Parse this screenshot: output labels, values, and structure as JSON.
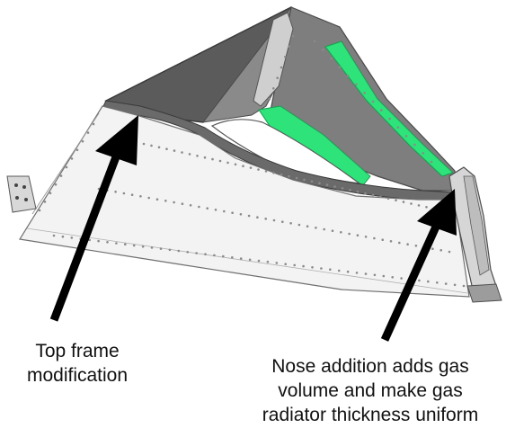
{
  "colors": {
    "panel_fill": "#f2f2f2",
    "panel_stroke": "#6a6a6a",
    "dark_surface": "#5b5b5b",
    "mid_surface": "#8c8c8c",
    "light_surface": "#b9b9b9",
    "green_highlight": "#2ee37a",
    "arrow": "#000000",
    "text": "#111111"
  },
  "callouts": {
    "left": {
      "lines": [
        "Top frame",
        "modification"
      ]
    },
    "right": {
      "lines": [
        "Nose addition adds gas",
        "volume and make gas",
        "radiator thickness uniform"
      ]
    }
  }
}
